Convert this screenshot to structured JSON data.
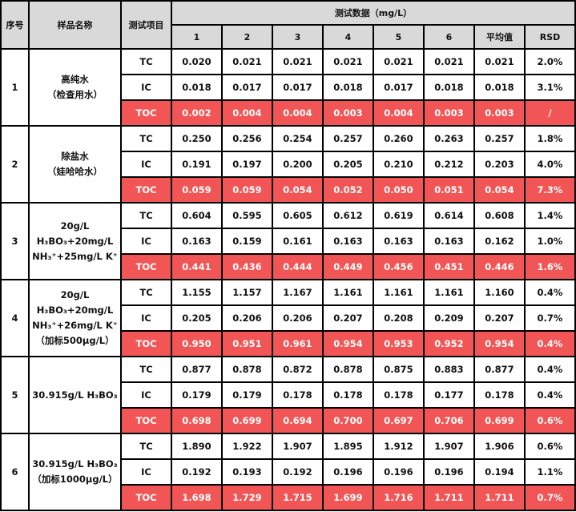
{
  "header": {
    "index": "序号",
    "sample": "样品名称",
    "item": "测试项目",
    "data_group": "测试数据（mg/L）",
    "columns": [
      "1",
      "2",
      "3",
      "4",
      "5",
      "6",
      "平均值",
      "RSD"
    ]
  },
  "colors": {
    "toc_highlight": "#f25555",
    "header_bg": "#d9d9d9"
  },
  "samples": [
    {
      "index": "1",
      "name": [
        "高纯水",
        "（检查用水）"
      ],
      "rows": [
        {
          "item": "TC",
          "values": [
            "0.020",
            "0.021",
            "0.021",
            "0.021",
            "0.021",
            "0.021",
            "0.021",
            "2.0%"
          ]
        },
        {
          "item": "IC",
          "values": [
            "0.018",
            "0.017",
            "0.017",
            "0.018",
            "0.017",
            "0.018",
            "0.018",
            "3.1%"
          ]
        },
        {
          "item": "TOC",
          "values": [
            "0.002",
            "0.004",
            "0.004",
            "0.003",
            "0.004",
            "0.003",
            "0.003",
            "/"
          ]
        }
      ]
    },
    {
      "index": "2",
      "name": [
        "除盐水",
        "（娃哈哈水）"
      ],
      "rows": [
        {
          "item": "TC",
          "values": [
            "0.250",
            "0.256",
            "0.254",
            "0.257",
            "0.260",
            "0.263",
            "0.257",
            "1.8%"
          ]
        },
        {
          "item": "IC",
          "values": [
            "0.191",
            "0.197",
            "0.200",
            "0.205",
            "0.210",
            "0.212",
            "0.203",
            "4.0%"
          ]
        },
        {
          "item": "TOC",
          "values": [
            "0.059",
            "0.059",
            "0.054",
            "0.052",
            "0.050",
            "0.051",
            "0.054",
            "7.3%"
          ]
        }
      ]
    },
    {
      "index": "3",
      "name": [
        "20g/L",
        "H₃BO₃+20mg/L",
        "NH₃⁺+25mg/L K⁺"
      ],
      "rows": [
        {
          "item": "TC",
          "values": [
            "0.604",
            "0.595",
            "0.605",
            "0.612",
            "0.619",
            "0.614",
            "0.608",
            "1.4%"
          ]
        },
        {
          "item": "IC",
          "values": [
            "0.163",
            "0.159",
            "0.161",
            "0.163",
            "0.163",
            "0.163",
            "0.162",
            "1.0%"
          ]
        },
        {
          "item": "TOC",
          "values": [
            "0.441",
            "0.436",
            "0.444",
            "0.449",
            "0.456",
            "0.451",
            "0.446",
            "1.6%"
          ]
        }
      ]
    },
    {
      "index": "4",
      "name": [
        "20g/L",
        "H₃BO₃+20mg/L",
        "NH₃⁺+26mg/L K⁺",
        "（加标500μg/L）"
      ],
      "rows": [
        {
          "item": "TC",
          "values": [
            "1.155",
            "1.157",
            "1.167",
            "1.161",
            "1.161",
            "1.161",
            "1.160",
            "0.4%"
          ]
        },
        {
          "item": "IC",
          "values": [
            "0.205",
            "0.206",
            "0.206",
            "0.207",
            "0.208",
            "0.209",
            "0.207",
            "0.7%"
          ]
        },
        {
          "item": "TOC",
          "values": [
            "0.950",
            "0.951",
            "0.961",
            "0.954",
            "0.953",
            "0.952",
            "0.954",
            "0.4%"
          ]
        }
      ]
    },
    {
      "index": "5",
      "name": [
        "30.915g/L H₃BO₃"
      ],
      "rows": [
        {
          "item": "TC",
          "values": [
            "0.877",
            "0.878",
            "0.872",
            "0.878",
            "0.875",
            "0.883",
            "0.877",
            "0.4%"
          ]
        },
        {
          "item": "IC",
          "values": [
            "0.179",
            "0.179",
            "0.178",
            "0.178",
            "0.178",
            "0.177",
            "0.178",
            "0.4%"
          ]
        },
        {
          "item": "TOC",
          "values": [
            "0.698",
            "0.699",
            "0.694",
            "0.700",
            "0.697",
            "0.706",
            "0.699",
            "0.6%"
          ]
        }
      ]
    },
    {
      "index": "6",
      "name": [
        "30.915g/L H₃BO₃",
        "（加标1000μg/L）"
      ],
      "rows": [
        {
          "item": "TC",
          "values": [
            "1.890",
            "1.922",
            "1.907",
            "1.895",
            "1.912",
            "1.907",
            "1.906",
            "0.6%"
          ]
        },
        {
          "item": "IC",
          "values": [
            "0.192",
            "0.193",
            "0.192",
            "0.196",
            "0.196",
            "0.196",
            "0.194",
            "1.1%"
          ]
        },
        {
          "item": "TOC",
          "values": [
            "1.698",
            "1.729",
            "1.715",
            "1.699",
            "1.716",
            "1.711",
            "1.711",
            "0.7%"
          ]
        }
      ]
    }
  ]
}
